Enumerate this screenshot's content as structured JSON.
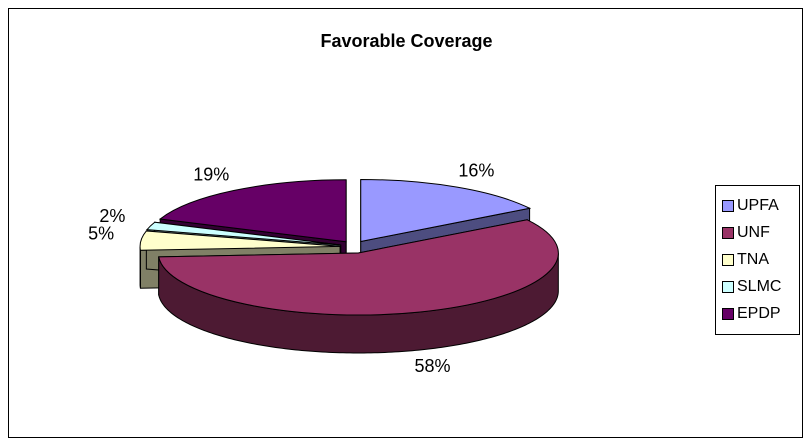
{
  "chart_data": {
    "type": "pie",
    "title": "Favorable Coverage",
    "categories": [
      "UPFA",
      "UNF",
      "TNA",
      "SLMC",
      "EPDP"
    ],
    "values": [
      16,
      58,
      5,
      2,
      19
    ],
    "labels": [
      "16%",
      "58%",
      "5%",
      "2%",
      "19%"
    ],
    "colors": [
      "#9999FF",
      "#993366",
      "#FFFFCC",
      "#CCFFFF",
      "#660066"
    ],
    "side_colors": [
      "#4D4D80",
      "#4D1A33",
      "#808066",
      "#668080",
      "#330033"
    ],
    "legend_position": "right",
    "three_d": true,
    "exploded": true
  }
}
